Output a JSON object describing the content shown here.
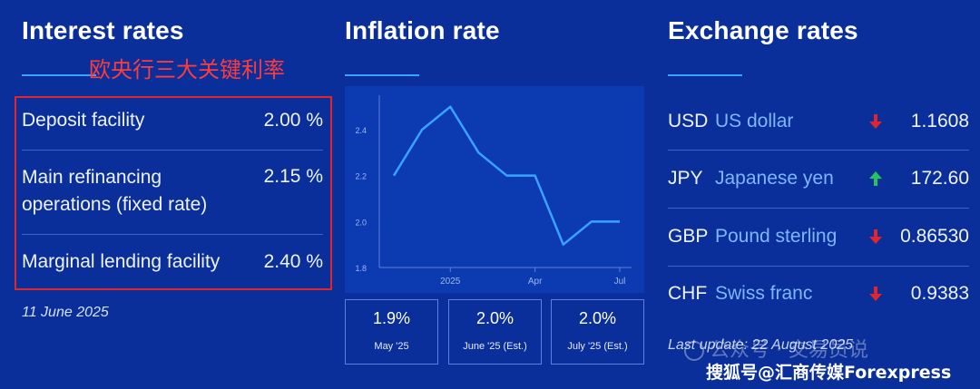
{
  "interest_rates": {
    "title": "Interest rates",
    "annotation": "欧央行三大关键利率",
    "rows": [
      {
        "label_line1": "Deposit facility",
        "label_line2": "",
        "value": "2.00 %"
      },
      {
        "label_line1": "Main refinancing",
        "label_line2": "operations (fixed rate)",
        "value": "2.15 %"
      },
      {
        "label_line1": "Marginal lending facility",
        "label_line2": "",
        "value": "2.40 %"
      }
    ],
    "date": "11 June 2025"
  },
  "inflation": {
    "title": "Inflation rate",
    "cards": [
      {
        "value": "1.9%",
        "label": "May '25"
      },
      {
        "value": "2.0%",
        "label": "June '25 (Est.)"
      },
      {
        "value": "2.0%",
        "label": "July '25 (Est.)"
      }
    ]
  },
  "chart_data": {
    "type": "line",
    "x_tick_labels": [
      "2025",
      "Apr",
      "Jul"
    ],
    "y_ticks": [
      1.8,
      2.0,
      2.2,
      2.4
    ],
    "ylim": [
      1.8,
      2.55
    ],
    "points": [
      2.2,
      2.4,
      2.5,
      2.3,
      2.2,
      2.2,
      1.9,
      2.0,
      2.0
    ],
    "line_color": "#3aa3ff"
  },
  "exchange": {
    "title": "Exchange rates",
    "rows": [
      {
        "code": "USD",
        "name": "US dollar",
        "direction": "down",
        "rate": "1.1608"
      },
      {
        "code": "JPY",
        "name": "Japanese yen",
        "direction": "up",
        "rate": "172.60"
      },
      {
        "code": "GBP",
        "name": "Pound sterling",
        "direction": "down",
        "rate": "0.86530"
      },
      {
        "code": "CHF",
        "name": "Swiss franc",
        "direction": "down",
        "rate": "0.9383"
      }
    ],
    "last_update": "Last update: 22 August 2025"
  },
  "watermark": "公众号 · 交易员说",
  "source_credit": "搜狐号@汇商传媒Forexpress",
  "colors": {
    "background": "#0a2f9a",
    "accent": "#3aa3ff",
    "up": "#22c55e",
    "down": "#e0262b",
    "highlight_box": "#e0262b"
  }
}
